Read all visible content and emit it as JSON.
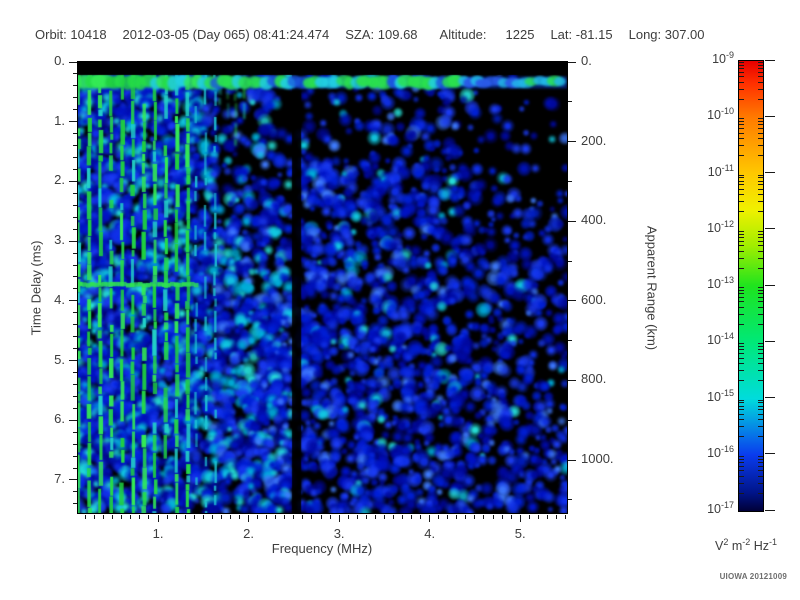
{
  "header": {
    "items": [
      "Orbit: 10418",
      "2012-03-05 (Day 065) 08:41:24.474",
      "SZA: 109.68",
      "Altitude:",
      "1225",
      "Lat: -81.15",
      "Long: 307.00"
    ]
  },
  "credit": "UIOWA 20121009",
  "chart_data": {
    "type": "heatmap",
    "subtype": "radar-sounder-ionogram-spectrogram",
    "title": "",
    "xlabel": "Frequency (MHz)",
    "ylabel_left": "Time Delay (ms)",
    "ylabel_right": "Apparent Range (km)",
    "xlim": [
      0.116,
      5.517
    ],
    "ylim_left": [
      0,
      7.553
    ],
    "ylim_right": [
      0,
      1132.9
    ],
    "x_ticks": [
      1,
      2,
      3,
      4,
      5
    ],
    "x_minor_step": 0.1,
    "y_ticks_left": [
      0,
      1,
      2,
      3,
      4,
      5,
      6,
      7
    ],
    "y_minor_step_left": 0.2,
    "y_ticks_right": [
      0,
      200,
      400,
      600,
      800,
      1000
    ],
    "y_minor_step_right": 100,
    "grid": false,
    "colorbar": {
      "scale": "log",
      "tick_exponents": [
        -9,
        -10,
        -11,
        -12,
        -13,
        -14,
        -15,
        -16,
        -17
      ],
      "unit_parts": [
        [
          "V",
          "2"
        ],
        [
          "m",
          "-2"
        ],
        [
          "Hz",
          "-1"
        ]
      ],
      "gradient_stops": [
        [
          0,
          "#e60000"
        ],
        [
          0.05,
          "#ff3000"
        ],
        [
          0.125,
          "#ff7a00"
        ],
        [
          0.25,
          "#ffc800"
        ],
        [
          0.33,
          "#f0f000"
        ],
        [
          0.41,
          "#a2ee00"
        ],
        [
          0.5,
          "#1ee41e"
        ],
        [
          0.625,
          "#00e878"
        ],
        [
          0.75,
          "#00dcdc"
        ],
        [
          0.875,
          "#0a3cee"
        ],
        [
          0.96,
          "#001488"
        ],
        [
          1,
          "#000038"
        ]
      ]
    },
    "features": {
      "noise_seed": 42,
      "top_quiet_band_ms": [
        0,
        0.22
      ],
      "surface_echo_band_ms": [
        0.23,
        0.46
      ],
      "plasma_harmonic_lines": {
        "f_start_mhz": 0.12,
        "f_end_mhz": 1.33,
        "count": 11,
        "color": "#2bdc4c"
      },
      "cyan_lines": {
        "f_start_mhz": 1.42,
        "f_end_mhz": 1.63,
        "count": 3,
        "color": "#1ec8d4"
      },
      "horizontal_echo_line": {
        "time_ms": 3.73,
        "f_end_mhz": 1.42,
        "color": "#2ee052"
      },
      "quiet_gap_mhz": [
        2.48,
        2.57
      ],
      "noise_palette_blue": [
        "#0009a0",
        "#0013c4",
        "#0020d8",
        "#0f2fe8",
        "#1b3bf2"
      ],
      "noise_palette_cyan": [
        "#00b0dc",
        "#12cbe4",
        "#27e0d8"
      ],
      "noise_light_blue": "#3f7bff"
    }
  }
}
